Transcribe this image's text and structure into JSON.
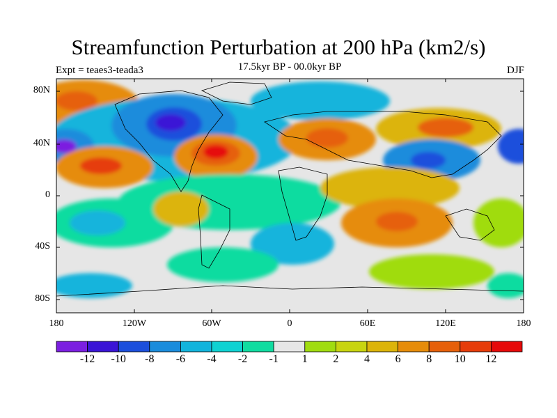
{
  "title": "Streamfunction Perturbation at 200 hPa (km2/s)",
  "left_note": "Expt = teaes3-teada3",
  "center_note": "17.5kyr BP - 00.0kyr BP",
  "right_note": "DJF",
  "lat_ticks": [
    "80N",
    "40N",
    "0",
    "40S",
    "80S"
  ],
  "lon_ticks": [
    "180",
    "120W",
    "60W",
    "0",
    "60E",
    "120E",
    "180"
  ],
  "colorbar": {
    "labels": [
      "-12",
      "-10",
      "-8",
      "-6",
      "-4",
      "-2",
      "-1",
      "1",
      "2",
      "4",
      "6",
      "8",
      "10",
      "12"
    ],
    "colors": [
      "#7b1fe0",
      "#3a14d6",
      "#1c4fdc",
      "#1a8cdc",
      "#12b4dc",
      "#0fd2d2",
      "#10dca0",
      "#e6e6e6",
      "#a0dc10",
      "#c8d410",
      "#dcb40a",
      "#e68c0a",
      "#e6600a",
      "#e63c0a",
      "#e60a0a"
    ]
  },
  "colors": {
    "land_outline": "#000000",
    "ocean_background": "#e6e6e6"
  }
}
